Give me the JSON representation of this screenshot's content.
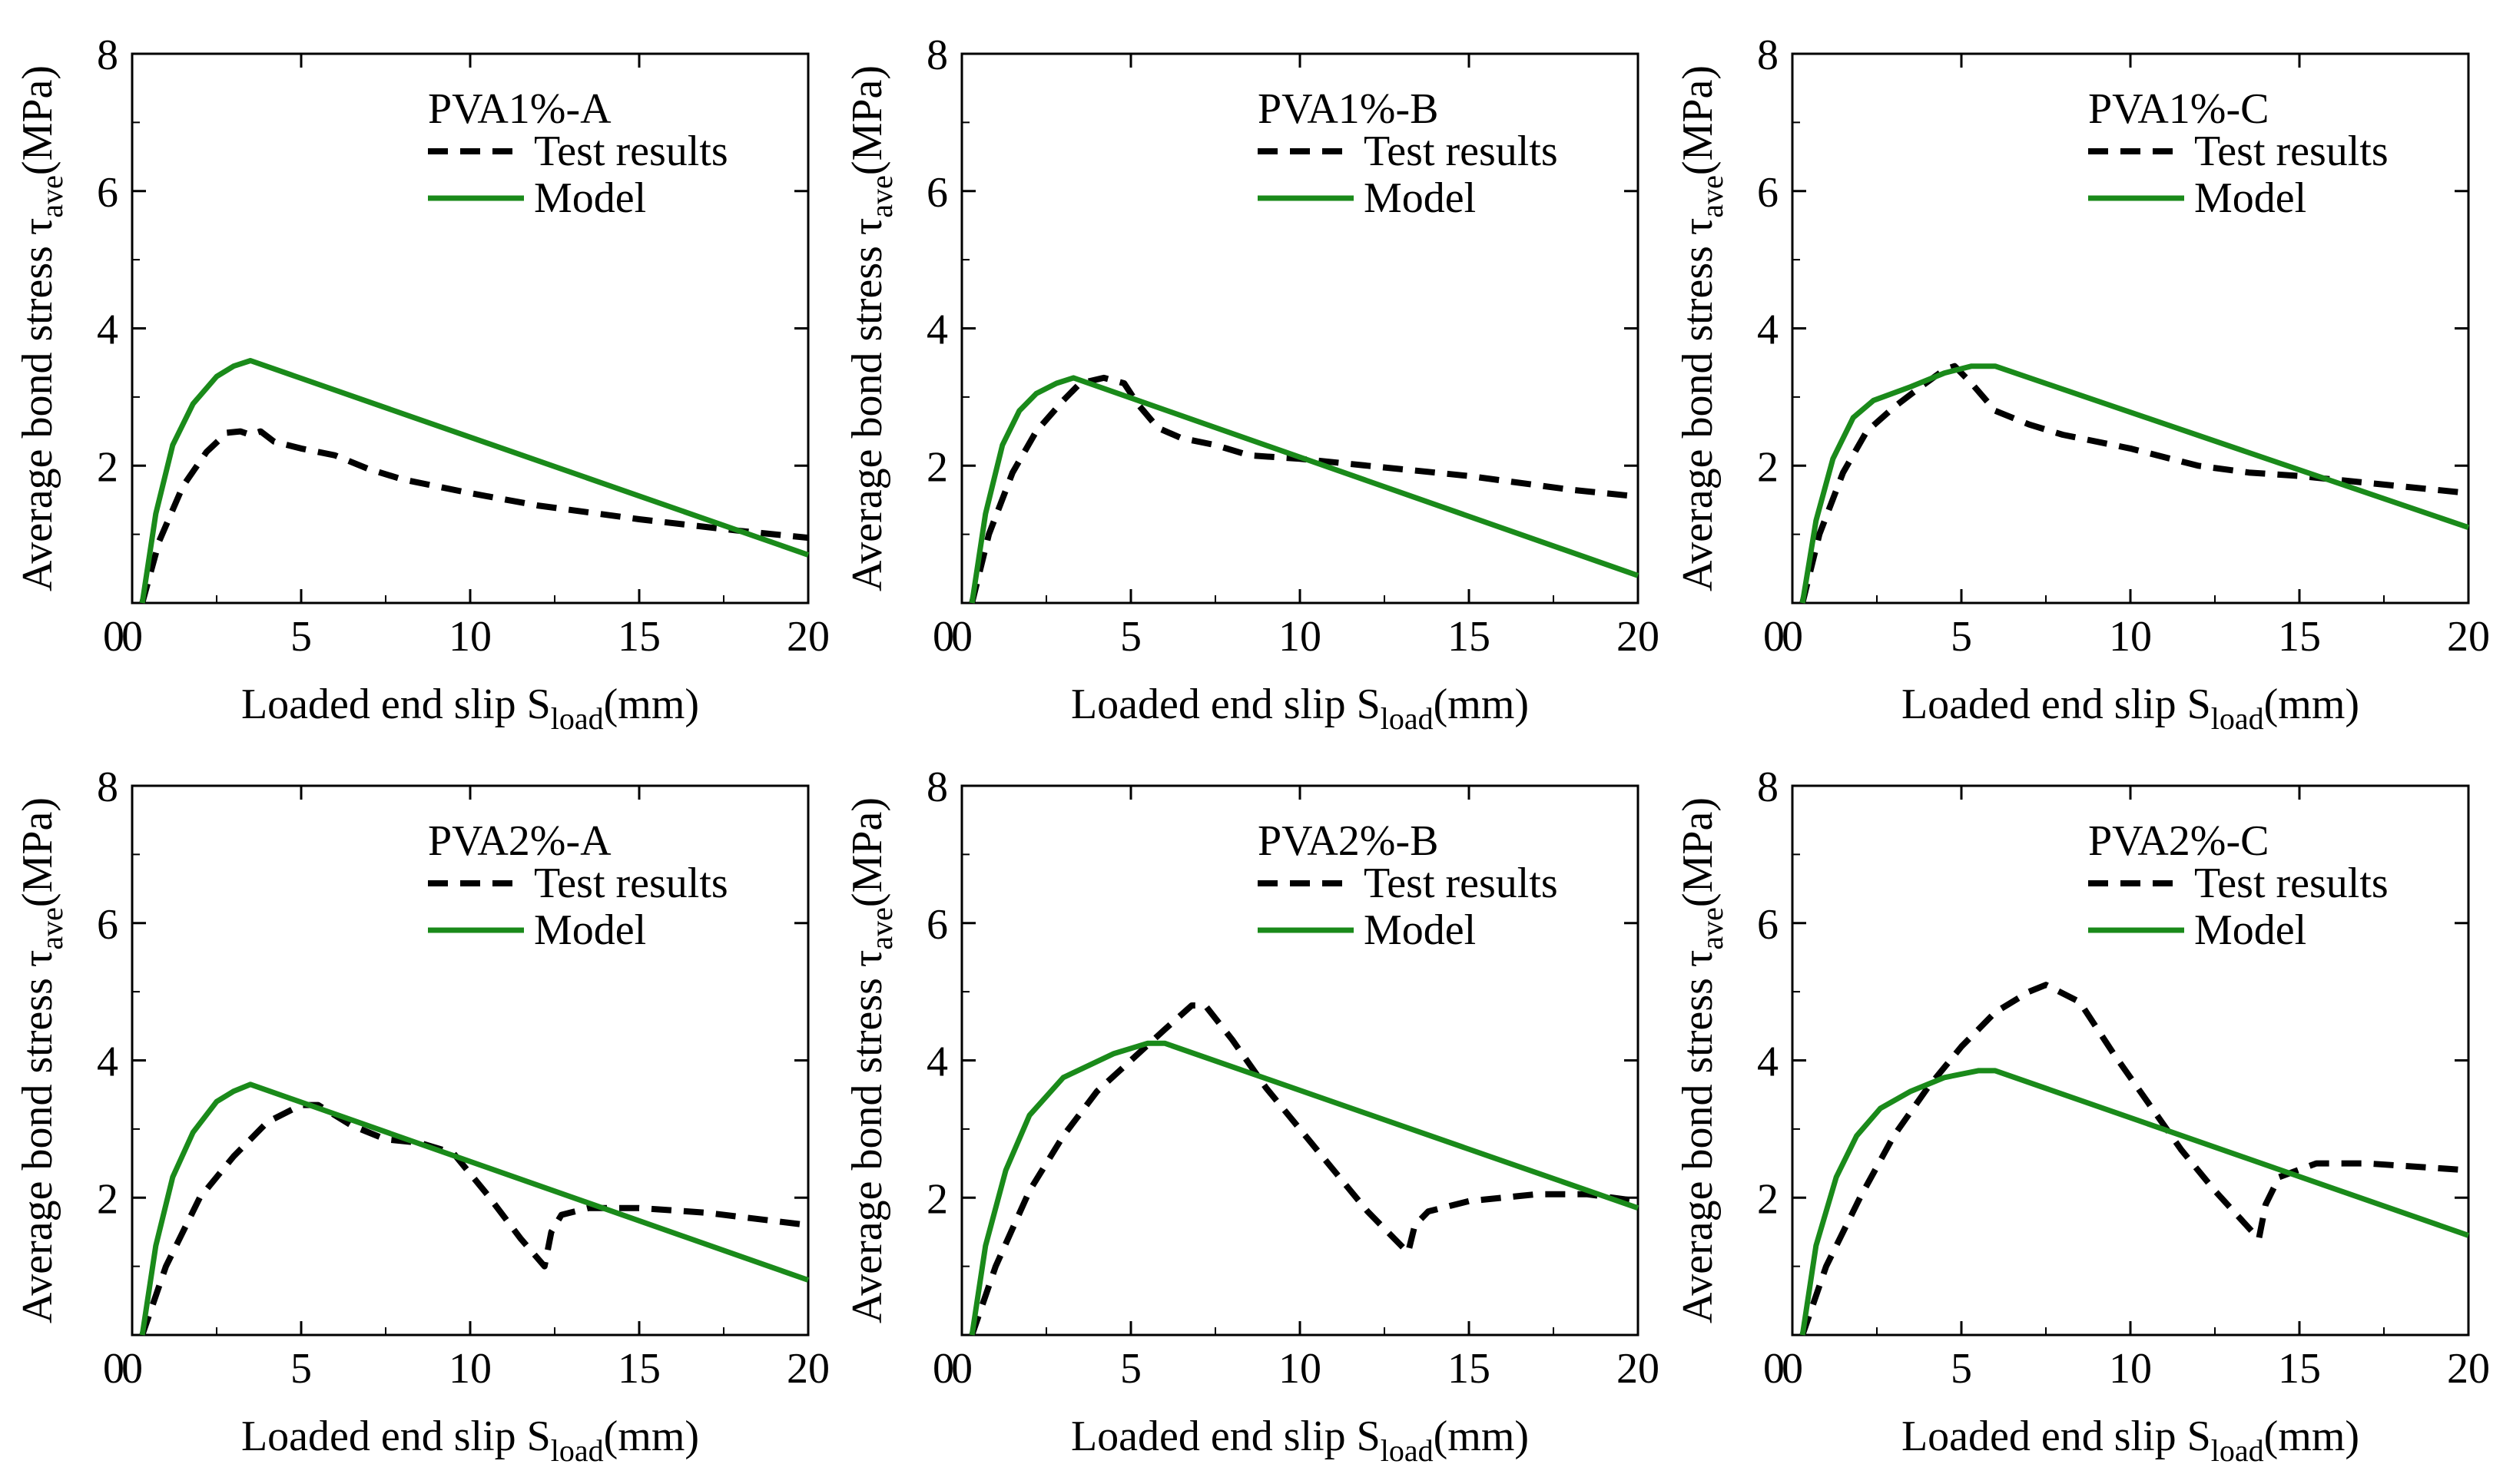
{
  "figure": {
    "x_axis_label": "Loaded end slip S",
    "x_axis_subscript": "load",
    "x_axis_unit": "(mm)",
    "y_axis_label": "Average bond stress τ",
    "y_axis_subscript": "ave",
    "y_axis_unit": "(MPa)",
    "legend_test": "Test results",
    "legend_model": "Model",
    "model_color": "#1a8a1a",
    "test_color": "#000000"
  },
  "chart_data": [
    {
      "type": "line",
      "title": "PVA1%-A",
      "xlim": [
        0,
        20
      ],
      "ylim": [
        0,
        8
      ],
      "xticks": [
        0,
        5,
        10,
        15,
        20
      ],
      "yticks": [
        2,
        4,
        6,
        8
      ],
      "series": [
        {
          "name": "Test results",
          "x": [
            0.3,
            0.8,
            1.5,
            2.2,
            2.8,
            3.2,
            3.5,
            3.8,
            4.2,
            5,
            6,
            7,
            8,
            10,
            12,
            15,
            18,
            20
          ],
          "y": [
            0,
            0.9,
            1.7,
            2.2,
            2.48,
            2.5,
            2.45,
            2.5,
            2.35,
            2.25,
            2.15,
            1.95,
            1.8,
            1.6,
            1.42,
            1.22,
            1.05,
            0.95
          ]
        },
        {
          "name": "Model",
          "x": [
            0.3,
            0.7,
            1.2,
            1.8,
            2.5,
            3.0,
            3.5,
            20
          ],
          "y": [
            0,
            1.3,
            2.3,
            2.9,
            3.3,
            3.45,
            3.53,
            0.7
          ]
        }
      ]
    },
    {
      "type": "line",
      "title": "PVA1%-B",
      "xlim": [
        0,
        20
      ],
      "ylim": [
        0,
        8
      ],
      "xticks": [
        0,
        5,
        10,
        15,
        20
      ],
      "yticks": [
        2,
        4,
        6,
        8
      ],
      "series": [
        {
          "name": "Test results",
          "x": [
            0.3,
            0.8,
            1.5,
            2.2,
            3.0,
            3.5,
            4.2,
            4.8,
            5.2,
            5.8,
            6.5,
            7.5,
            8.5,
            10,
            12,
            15,
            18,
            20
          ],
          "y": [
            0,
            1.0,
            1.9,
            2.5,
            2.95,
            3.2,
            3.28,
            3.2,
            2.9,
            2.55,
            2.4,
            2.3,
            2.15,
            2.1,
            2.0,
            1.85,
            1.65,
            1.55
          ]
        },
        {
          "name": "Model",
          "x": [
            0.3,
            0.7,
            1.2,
            1.7,
            2.2,
            2.8,
            3.3,
            20
          ],
          "y": [
            0,
            1.3,
            2.3,
            2.8,
            3.05,
            3.2,
            3.28,
            0.4
          ]
        }
      ]
    },
    {
      "type": "line",
      "title": "PVA1%-C",
      "xlim": [
        0,
        20
      ],
      "ylim": [
        0,
        8
      ],
      "xticks": [
        0,
        5,
        10,
        15,
        20
      ],
      "yticks": [
        2,
        4,
        6,
        8
      ],
      "series": [
        {
          "name": "Test results",
          "x": [
            0.3,
            0.8,
            1.5,
            2.2,
            3.0,
            3.8,
            4.5,
            4.8,
            5.3,
            6.0,
            7.0,
            8.0,
            10,
            12,
            13.5,
            15,
            18,
            20
          ],
          "y": [
            0,
            1.0,
            1.9,
            2.5,
            2.85,
            3.15,
            3.4,
            3.45,
            3.2,
            2.8,
            2.6,
            2.45,
            2.25,
            2.0,
            1.9,
            1.85,
            1.7,
            1.6
          ]
        },
        {
          "name": "Model",
          "x": [
            0.3,
            0.7,
            1.2,
            1.8,
            2.4,
            3.5,
            4.5,
            5.3,
            6.0,
            20
          ],
          "y": [
            0,
            1.2,
            2.1,
            2.7,
            2.95,
            3.15,
            3.35,
            3.45,
            3.45,
            1.1
          ]
        }
      ]
    },
    {
      "type": "line",
      "title": "PVA2%-A",
      "xlim": [
        0,
        20
      ],
      "ylim": [
        0,
        8
      ],
      "xticks": [
        0,
        5,
        10,
        15,
        20
      ],
      "yticks": [
        2,
        4,
        6,
        8
      ],
      "series": [
        {
          "name": "Test results",
          "x": [
            0.3,
            1.0,
            2.0,
            3.0,
            4.0,
            5.0,
            5.5,
            6.5,
            7.5,
            8.5,
            9.5,
            10.5,
            11.5,
            12.2,
            12.4,
            12.7,
            13.5,
            15,
            17,
            20
          ],
          "y": [
            0,
            1.0,
            2.0,
            2.6,
            3.1,
            3.35,
            3.35,
            3.05,
            2.85,
            2.8,
            2.65,
            2.05,
            1.4,
            1.0,
            1.5,
            1.75,
            1.85,
            1.85,
            1.78,
            1.6
          ]
        },
        {
          "name": "Model",
          "x": [
            0.3,
            0.7,
            1.2,
            1.8,
            2.5,
            3.0,
            3.5,
            20
          ],
          "y": [
            0,
            1.3,
            2.3,
            2.95,
            3.4,
            3.55,
            3.65,
            0.8
          ]
        }
      ]
    },
    {
      "type": "line",
      "title": "PVA2%-B",
      "xlim": [
        0,
        20
      ],
      "ylim": [
        0,
        8
      ],
      "xticks": [
        0,
        5,
        10,
        15,
        20
      ],
      "yticks": [
        2,
        4,
        6,
        8
      ],
      "series": [
        {
          "name": "Test results",
          "x": [
            0.3,
            1.0,
            2.0,
            3.0,
            4.0,
            5.0,
            6.0,
            6.8,
            7.2,
            8.0,
            9.0,
            10.0,
            11.0,
            12.0,
            13.2,
            13.4,
            13.8,
            15,
            17,
            18.5,
            20
          ],
          "y": [
            0,
            1.0,
            2.1,
            2.9,
            3.55,
            4.0,
            4.45,
            4.8,
            4.8,
            4.3,
            3.6,
            3.0,
            2.4,
            1.8,
            1.2,
            1.6,
            1.8,
            1.95,
            2.05,
            2.05,
            1.95
          ]
        },
        {
          "name": "Model",
          "x": [
            0.3,
            0.7,
            1.3,
            2.0,
            3.0,
            4.5,
            5.5,
            6.0,
            20
          ],
          "y": [
            0,
            1.3,
            2.4,
            3.2,
            3.75,
            4.1,
            4.25,
            4.25,
            1.85
          ]
        }
      ]
    },
    {
      "type": "line",
      "title": "PVA2%-C",
      "xlim": [
        0,
        20
      ],
      "ylim": [
        0,
        8
      ],
      "xticks": [
        0,
        5,
        10,
        15,
        20
      ],
      "yticks": [
        2,
        4,
        6,
        8
      ],
      "series": [
        {
          "name": "Test results",
          "x": [
            0.3,
            1.0,
            2.0,
            3.0,
            4.0,
            5.0,
            6.0,
            7.0,
            7.5,
            8.5,
            9.5,
            10.5,
            11.5,
            12.5,
            13.8,
            14.0,
            14.4,
            15.5,
            17,
            20
          ],
          "y": [
            0,
            1.0,
            2.0,
            2.9,
            3.6,
            4.2,
            4.7,
            5.0,
            5.1,
            4.85,
            4.1,
            3.4,
            2.7,
            2.1,
            1.4,
            1.9,
            2.3,
            2.5,
            2.5,
            2.4
          ]
        },
        {
          "name": "Model",
          "x": [
            0.3,
            0.7,
            1.3,
            1.9,
            2.6,
            3.5,
            4.5,
            5.5,
            6.0,
            20
          ],
          "y": [
            0,
            1.3,
            2.3,
            2.9,
            3.3,
            3.55,
            3.75,
            3.85,
            3.85,
            1.45
          ]
        }
      ]
    }
  ]
}
